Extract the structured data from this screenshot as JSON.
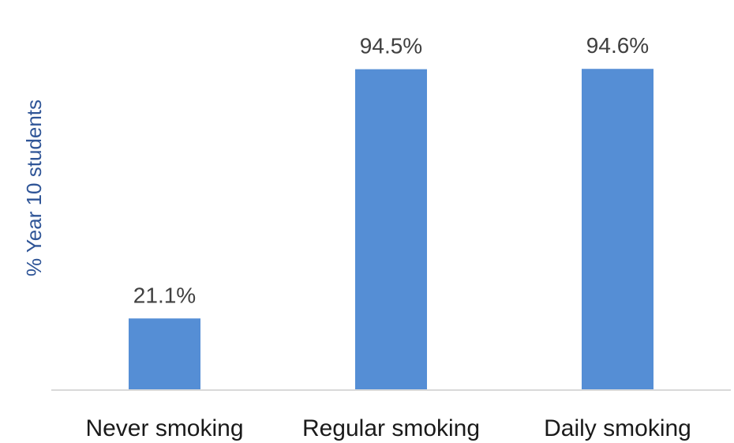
{
  "chart_data": {
    "type": "bar",
    "title": "",
    "xlabel": "",
    "ylabel": "% Year 10 students",
    "ylim": [
      0,
      100
    ],
    "grid": false,
    "categories": [
      "Never smoking",
      "Regular smoking",
      "Daily smoking"
    ],
    "values": [
      21.1,
      94.5,
      94.6
    ],
    "data_labels": [
      "21.1%",
      "94.5%",
      "94.6%"
    ],
    "colors": {
      "bar": "#558ed5",
      "axis": "#d9d9d9"
    }
  }
}
